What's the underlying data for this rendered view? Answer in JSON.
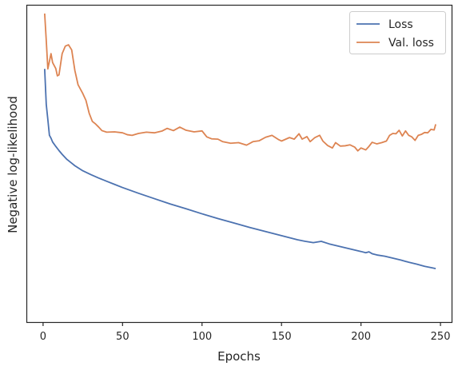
{
  "chart_data": {
    "type": "line",
    "xlabel": "Epochs",
    "ylabel": "Negative log-likelihood",
    "xlim": [
      -10,
      257
    ],
    "ylim": [
      0,
      1
    ],
    "xticks": [
      0,
      50,
      100,
      150,
      200,
      250
    ],
    "yticks_shown": false,
    "grid": false,
    "legend_position": "top-right",
    "series": [
      {
        "name": "Loss",
        "color": "#4c72b0",
        "points": [
          [
            1,
            0.8
          ],
          [
            2,
            0.688
          ],
          [
            3,
            0.64
          ],
          [
            4,
            0.59
          ],
          [
            5,
            0.581
          ],
          [
            6,
            0.569
          ],
          [
            8,
            0.555
          ],
          [
            10,
            0.542
          ],
          [
            12,
            0.53
          ],
          [
            15,
            0.514
          ],
          [
            18,
            0.502
          ],
          [
            20,
            0.494
          ],
          [
            25,
            0.478
          ],
          [
            30,
            0.466
          ],
          [
            35,
            0.455
          ],
          [
            40,
            0.445
          ],
          [
            45,
            0.435
          ],
          [
            50,
            0.425
          ],
          [
            60,
            0.407
          ],
          [
            70,
            0.39
          ],
          [
            80,
            0.373
          ],
          [
            90,
            0.358
          ],
          [
            100,
            0.342
          ],
          [
            110,
            0.327
          ],
          [
            120,
            0.313
          ],
          [
            130,
            0.299
          ],
          [
            140,
            0.286
          ],
          [
            150,
            0.273
          ],
          [
            160,
            0.26
          ],
          [
            165,
            0.255
          ],
          [
            170,
            0.251
          ],
          [
            175,
            0.255
          ],
          [
            180,
            0.247
          ],
          [
            190,
            0.235
          ],
          [
            200,
            0.223
          ],
          [
            203,
            0.219
          ],
          [
            205,
            0.222
          ],
          [
            207,
            0.216
          ],
          [
            210,
            0.212
          ],
          [
            215,
            0.208
          ],
          [
            220,
            0.202
          ],
          [
            225,
            0.196
          ],
          [
            230,
            0.189
          ],
          [
            235,
            0.183
          ],
          [
            240,
            0.176
          ],
          [
            245,
            0.171
          ],
          [
            247,
            0.169
          ]
        ]
      },
      {
        "name": "Val. loss",
        "color": "#dd8452",
        "points": [
          [
            1,
            0.975
          ],
          [
            2,
            0.89
          ],
          [
            3,
            0.8
          ],
          [
            5,
            0.848
          ],
          [
            6,
            0.82
          ],
          [
            8,
            0.801
          ],
          [
            9,
            0.778
          ],
          [
            10,
            0.781
          ],
          [
            12,
            0.848
          ],
          [
            14,
            0.872
          ],
          [
            16,
            0.876
          ],
          [
            18,
            0.86
          ],
          [
            20,
            0.795
          ],
          [
            22,
            0.75
          ],
          [
            25,
            0.722
          ],
          [
            27,
            0.7
          ],
          [
            29,
            0.66
          ],
          [
            31,
            0.634
          ],
          [
            33,
            0.626
          ],
          [
            35,
            0.616
          ],
          [
            37,
            0.605
          ],
          [
            40,
            0.6
          ],
          [
            45,
            0.601
          ],
          [
            50,
            0.598
          ],
          [
            53,
            0.592
          ],
          [
            56,
            0.59
          ],
          [
            60,
            0.596
          ],
          [
            65,
            0.6
          ],
          [
            70,
            0.598
          ],
          [
            75,
            0.604
          ],
          [
            78,
            0.612
          ],
          [
            82,
            0.605
          ],
          [
            86,
            0.616
          ],
          [
            90,
            0.606
          ],
          [
            95,
            0.601
          ],
          [
            100,
            0.604
          ],
          [
            103,
            0.585
          ],
          [
            106,
            0.579
          ],
          [
            110,
            0.578
          ],
          [
            113,
            0.57
          ],
          [
            118,
            0.565
          ],
          [
            123,
            0.567
          ],
          [
            128,
            0.559
          ],
          [
            132,
            0.57
          ],
          [
            136,
            0.573
          ],
          [
            140,
            0.584
          ],
          [
            144,
            0.59
          ],
          [
            148,
            0.577
          ],
          [
            150,
            0.572
          ],
          [
            155,
            0.583
          ],
          [
            158,
            0.578
          ],
          [
            161,
            0.595
          ],
          [
            163,
            0.578
          ],
          [
            166,
            0.586
          ],
          [
            168,
            0.57
          ],
          [
            171,
            0.583
          ],
          [
            174,
            0.59
          ],
          [
            176,
            0.572
          ],
          [
            179,
            0.558
          ],
          [
            182,
            0.55
          ],
          [
            184,
            0.567
          ],
          [
            187,
            0.556
          ],
          [
            190,
            0.557
          ],
          [
            193,
            0.56
          ],
          [
            196,
            0.553
          ],
          [
            198,
            0.541
          ],
          [
            200,
            0.55
          ],
          [
            203,
            0.544
          ],
          [
            205,
            0.555
          ],
          [
            207,
            0.568
          ],
          [
            210,
            0.563
          ],
          [
            213,
            0.567
          ],
          [
            216,
            0.572
          ],
          [
            218,
            0.59
          ],
          [
            220,
            0.596
          ],
          [
            222,
            0.595
          ],
          [
            224,
            0.606
          ],
          [
            226,
            0.588
          ],
          [
            228,
            0.604
          ],
          [
            230,
            0.59
          ],
          [
            232,
            0.585
          ],
          [
            234,
            0.574
          ],
          [
            236,
            0.59
          ],
          [
            238,
            0.593
          ],
          [
            240,
            0.599
          ],
          [
            242,
            0.598
          ],
          [
            244,
            0.609
          ],
          [
            246,
            0.607
          ],
          [
            247,
            0.625
          ]
        ]
      }
    ]
  }
}
